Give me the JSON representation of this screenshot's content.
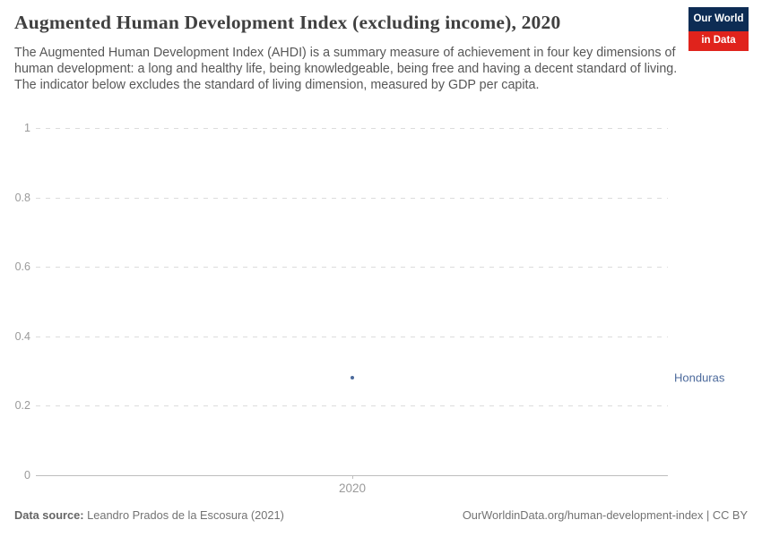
{
  "page": {
    "title": "Augmented Human Development Index (excluding income), 2020",
    "subtitle": "The Augmented Human Development Index (AHDI) is a summary measure of achievement in four key dimensions of human development: a long and healthy life, being knowledgeable, being free and having a decent standard of living. The indicator below excludes the standard of living dimension, measured by GDP per capita."
  },
  "logo": {
    "line1": "Our World",
    "line2": "in Data"
  },
  "chart_data": {
    "type": "scatter",
    "title": "Augmented Human Development Index (excluding income), 2020",
    "x": [
      2020
    ],
    "xtick_labels": [
      "2020"
    ],
    "series": [
      {
        "name": "Honduras",
        "values": [
          0.28
        ],
        "color": "#4C6A9C"
      }
    ],
    "xlabel": "",
    "ylabel": "",
    "ylim": [
      0,
      1
    ],
    "yticks": [
      0,
      0.2,
      0.4,
      0.6,
      0.8,
      1
    ],
    "ytick_labels": [
      "0",
      "0.2",
      "0.4",
      "0.6",
      "0.8",
      "1"
    ],
    "grid": "horizontal-dashed",
    "legend": "entity-label-right"
  },
  "colors": {
    "accent_blue": "#4C6A9C",
    "logo_navy": "#0d2c54",
    "logo_red": "#e0231c",
    "grid_gray": "#dcdcdc",
    "axis_text_gray": "#9a9a9a"
  },
  "footer": {
    "datasource_label": "Data source:",
    "datasource_value": "Leandro Prados de la Escosura (2021)",
    "credit": "OurWorldinData.org/human-development-index | CC BY"
  }
}
